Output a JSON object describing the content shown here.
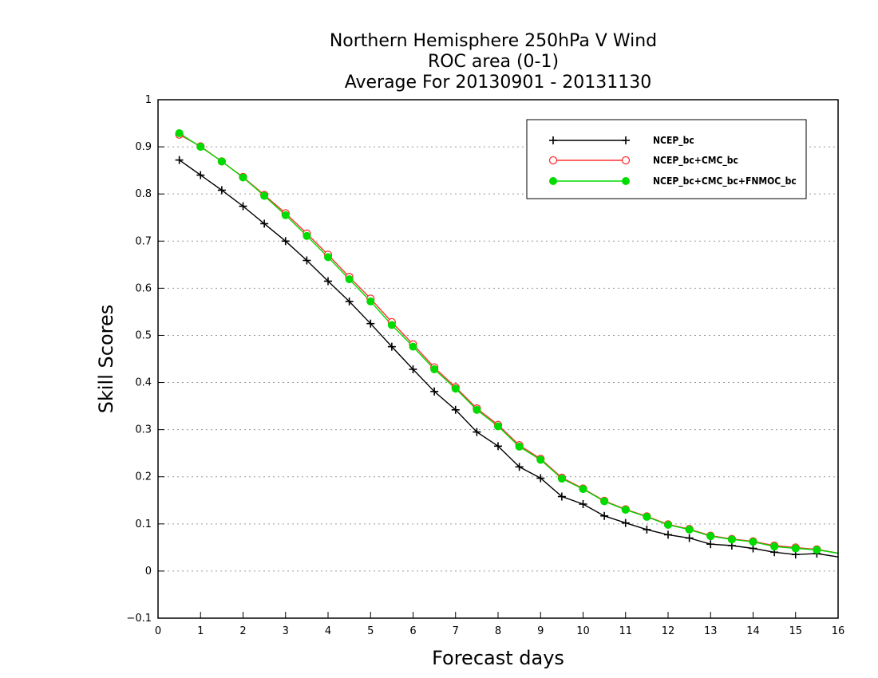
{
  "chart_data": {
    "type": "line",
    "title": [
      "Northern Hemisphere 250hPa V Wind",
      "ROC area (0-1)",
      "Average For 20130901 - 20131130"
    ],
    "xlabel": "Forecast days",
    "ylabel": "Skill Scores",
    "xlim": [
      0,
      16
    ],
    "ylim": [
      -0.1,
      1
    ],
    "xticks": [
      0,
      1,
      2,
      3,
      4,
      5,
      6,
      7,
      8,
      9,
      10,
      11,
      12,
      13,
      14,
      15,
      16
    ],
    "yticks": [
      -0.1,
      0,
      0.1,
      0.2,
      0.3,
      0.4,
      0.5,
      0.6,
      0.7,
      0.8,
      0.9,
      1
    ],
    "ytick_labels": [
      "−0.1",
      "0",
      "0.1",
      "0.2",
      "0.3",
      "0.4",
      "0.5",
      "0.6",
      "0.7",
      "0.8",
      "0.9",
      "1"
    ],
    "grid": "horizontal dotted",
    "legend_position": "top-right",
    "x": [
      0.5,
      1,
      1.5,
      2,
      2.5,
      3,
      3.5,
      4,
      4.5,
      5,
      5.5,
      6,
      6.5,
      7,
      7.5,
      8,
      8.5,
      9,
      9.5,
      10,
      10.5,
      11,
      11.5,
      12,
      12.5,
      13,
      13.5,
      14,
      14.5,
      15,
      15.5,
      16
    ],
    "series": [
      {
        "name": "NCEP_bc",
        "color": "#000000",
        "marker": "plus",
        "values": [
          0.872,
          0.84,
          0.808,
          0.774,
          0.737,
          0.7,
          0.659,
          0.615,
          0.572,
          0.525,
          0.476,
          0.428,
          0.381,
          0.342,
          0.295,
          0.265,
          0.221,
          0.197,
          0.158,
          0.142,
          0.117,
          0.102,
          0.088,
          0.077,
          0.07,
          0.057,
          0.054,
          0.048,
          0.04,
          0.035,
          0.037,
          0.03
        ]
      },
      {
        "name": "NCEP_bc+CMC_bc",
        "color": "#ff3030",
        "marker": "open-circle",
        "values": [
          0.926,
          0.901,
          0.869,
          0.836,
          0.798,
          0.759,
          0.716,
          0.671,
          0.624,
          0.578,
          0.528,
          0.481,
          0.432,
          0.39,
          0.345,
          0.31,
          0.267,
          0.238,
          0.198,
          0.175,
          0.149,
          0.131,
          0.116,
          0.099,
          0.089,
          0.075,
          0.068,
          0.063,
          0.054,
          0.05,
          0.046,
          0.038
        ]
      },
      {
        "name": "NCEP_bc+CMC_bc+FNMOC_bc",
        "color": "#00dc00",
        "marker": "filled-circle",
        "values": [
          0.929,
          0.9,
          0.869,
          0.835,
          0.796,
          0.755,
          0.711,
          0.666,
          0.619,
          0.572,
          0.522,
          0.476,
          0.428,
          0.387,
          0.342,
          0.307,
          0.264,
          0.236,
          0.196,
          0.174,
          0.148,
          0.13,
          0.115,
          0.098,
          0.088,
          0.074,
          0.067,
          0.062,
          0.052,
          0.048,
          0.045,
          0.038
        ]
      }
    ]
  }
}
